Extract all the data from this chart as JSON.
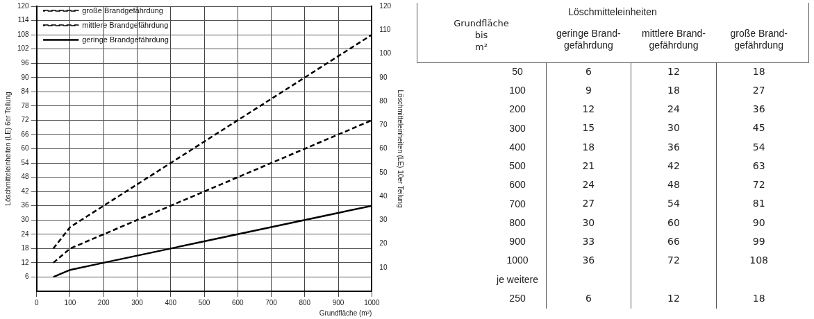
{
  "chart_data": [
    {
      "type": "line",
      "xlabel": "Grundfläche (m²)",
      "ylabel": "Löschmitteleinheiten (LE) 6er Teilung",
      "y2label": "Löschmitteleinheiten (LE) 10er Teilung",
      "x": [
        50,
        100,
        200,
        300,
        400,
        500,
        600,
        700,
        800,
        900,
        1000
      ],
      "series": [
        {
          "name": "geringe Brandgefährdung",
          "color": "#000000",
          "line_style": "solid",
          "values": [
            6,
            9,
            12,
            15,
            18,
            21,
            24,
            27,
            30,
            33,
            36
          ]
        },
        {
          "name": "mittlere Brandgefährdung",
          "color": "#000000",
          "line_style": "dashed",
          "values": [
            12,
            18,
            24,
            30,
            36,
            42,
            48,
            54,
            60,
            66,
            72
          ]
        },
        {
          "name": "große Brandgefährdung",
          "color": "#000000",
          "line_style": "dashed",
          "values": [
            18,
            27,
            36,
            45,
            54,
            63,
            72,
            81,
            90,
            99,
            108
          ]
        }
      ],
      "xlim": [
        0,
        1000
      ],
      "xticks": [
        0,
        100,
        200,
        300,
        400,
        500,
        600,
        700,
        800,
        900,
        1000
      ],
      "ylim": [
        0,
        120
      ],
      "yticks": [
        6,
        12,
        18,
        24,
        30,
        36,
        42,
        48,
        54,
        60,
        66,
        72,
        78,
        84,
        90,
        96,
        102,
        108,
        114,
        120
      ],
      "y2lim": [
        0,
        120
      ],
      "y2ticks": [
        10,
        20,
        30,
        40,
        50,
        60,
        70,
        80,
        90,
        100,
        110,
        120
      ],
      "grid": true,
      "legend": "top left",
      "marker": "none"
    },
    {
      "type": "heatmap",
      "title": "Löschmitteleinheiten",
      "ylabel": "Grundfläche bis m²",
      "data_labels": true,
      "categories": [
        "geringe Brand-gefährdung",
        "mittlere Brand-gefährdung",
        "große Brand-gefährdung"
      ],
      "y_categories": [
        "50",
        "100",
        "200",
        "300",
        "400",
        "500",
        "600",
        "700",
        "800",
        "900",
        "1000",
        "je weitere",
        "250"
      ],
      "cells": [
        [
          6,
          12,
          18
        ],
        [
          9,
          18,
          27
        ],
        [
          12,
          24,
          36
        ],
        [
          15,
          30,
          45
        ],
        [
          18,
          36,
          54
        ],
        [
          21,
          42,
          63
        ],
        [
          24,
          48,
          72
        ],
        [
          27,
          54,
          81
        ],
        [
          30,
          60,
          90
        ],
        [
          33,
          66,
          99
        ],
        [
          36,
          72,
          108
        ],
        [
          null,
          null,
          null
        ],
        [
          6,
          12,
          18
        ]
      ]
    }
  ]
}
